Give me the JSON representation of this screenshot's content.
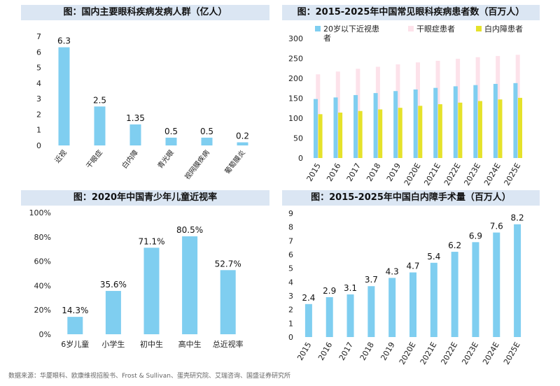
{
  "colors": {
    "blue": "#7fcef0",
    "pink": "#fde2ea",
    "yellow": "#e5e22a",
    "title_bg": "#dbe6f3",
    "axis": "#333333"
  },
  "source": "数据来源：华厦眼科、欧康维视招股书、Frost & Sullivan、蛋壳研究院、艾瑞咨询、国盛证券研究所",
  "chart_data": [
    {
      "type": "bar",
      "title": "图：国内主要眼科疾病发病人群（亿人）",
      "categories": [
        "近视",
        "干眼症",
        "白内障",
        "青光眼",
        "视网膜疾病",
        "葡萄膜炎"
      ],
      "values": [
        6.3,
        2.5,
        1.35,
        0.5,
        0.5,
        0.2
      ],
      "data_labels": [
        "6.3",
        "2.5",
        "1.35",
        "0.5",
        "0.5",
        "0.2"
      ],
      "ylim": [
        0,
        7
      ],
      "yticks": [
        "0",
        "1",
        "2",
        "3",
        "4",
        "5",
        "6",
        "7"
      ],
      "grid": false
    },
    {
      "type": "bar",
      "title": "图：2015-2025年中国常见眼科疾病患者数（百万人）",
      "categories": [
        "2015",
        "2016",
        "2017",
        "2018",
        "2019",
        "2020E",
        "2021E",
        "2022E",
        "2023E",
        "2024E",
        "2025E"
      ],
      "series": [
        {
          "name": "20岁以下近视患者",
          "values": [
            148,
            152,
            158,
            163,
            168,
            172,
            176,
            180,
            183,
            186,
            188
          ]
        },
        {
          "name": "干眼症患者",
          "values": [
            210,
            217,
            224,
            229,
            235,
            240,
            244,
            249,
            253,
            256,
            259
          ]
        },
        {
          "name": "白内障患者",
          "values": [
            110,
            114,
            118,
            122,
            126,
            131,
            135,
            139,
            143,
            147,
            151
          ]
        }
      ],
      "ylim": [
        0,
        300
      ],
      "yticks": [
        "0",
        "50",
        "100",
        "150",
        "200",
        "250",
        "300"
      ],
      "legend": "top",
      "grid": false
    },
    {
      "type": "bar",
      "title": "图：2020年中国青少年儿童近视率",
      "categories": [
        "6岁儿童",
        "小学生",
        "初中生",
        "高中生",
        "总近视率"
      ],
      "values": [
        14.3,
        35.6,
        71.1,
        80.5,
        52.7
      ],
      "data_labels": [
        "14.3%",
        "35.6%",
        "71.1%",
        "80.5%",
        "52.7%"
      ],
      "ylim": [
        0,
        100
      ],
      "yticks": [
        "0%",
        "20%",
        "40%",
        "60%",
        "80%",
        "100%"
      ],
      "grid": false
    },
    {
      "type": "bar",
      "title": "图：2015-2025年中国白内障手术量（百万人）",
      "categories": [
        "2015",
        "2016",
        "2017",
        "2018",
        "2019",
        "2020E",
        "2021E",
        "2022E",
        "2023E",
        "2024E",
        "2025E"
      ],
      "values": [
        2.4,
        2.9,
        3.1,
        3.7,
        4.3,
        4.7,
        5.4,
        6.2,
        6.9,
        7.6,
        8.2
      ],
      "data_labels": [
        "2.4",
        "2.9",
        "3.1",
        "3.7",
        "4.3",
        "4.7",
        "5.4",
        "6.2",
        "6.9",
        "7.6",
        "8.2"
      ],
      "ylim": [
        0,
        9
      ],
      "yticks": [
        "0",
        "1",
        "2",
        "3",
        "4",
        "5",
        "6",
        "7",
        "8",
        "9"
      ],
      "grid": false
    }
  ]
}
